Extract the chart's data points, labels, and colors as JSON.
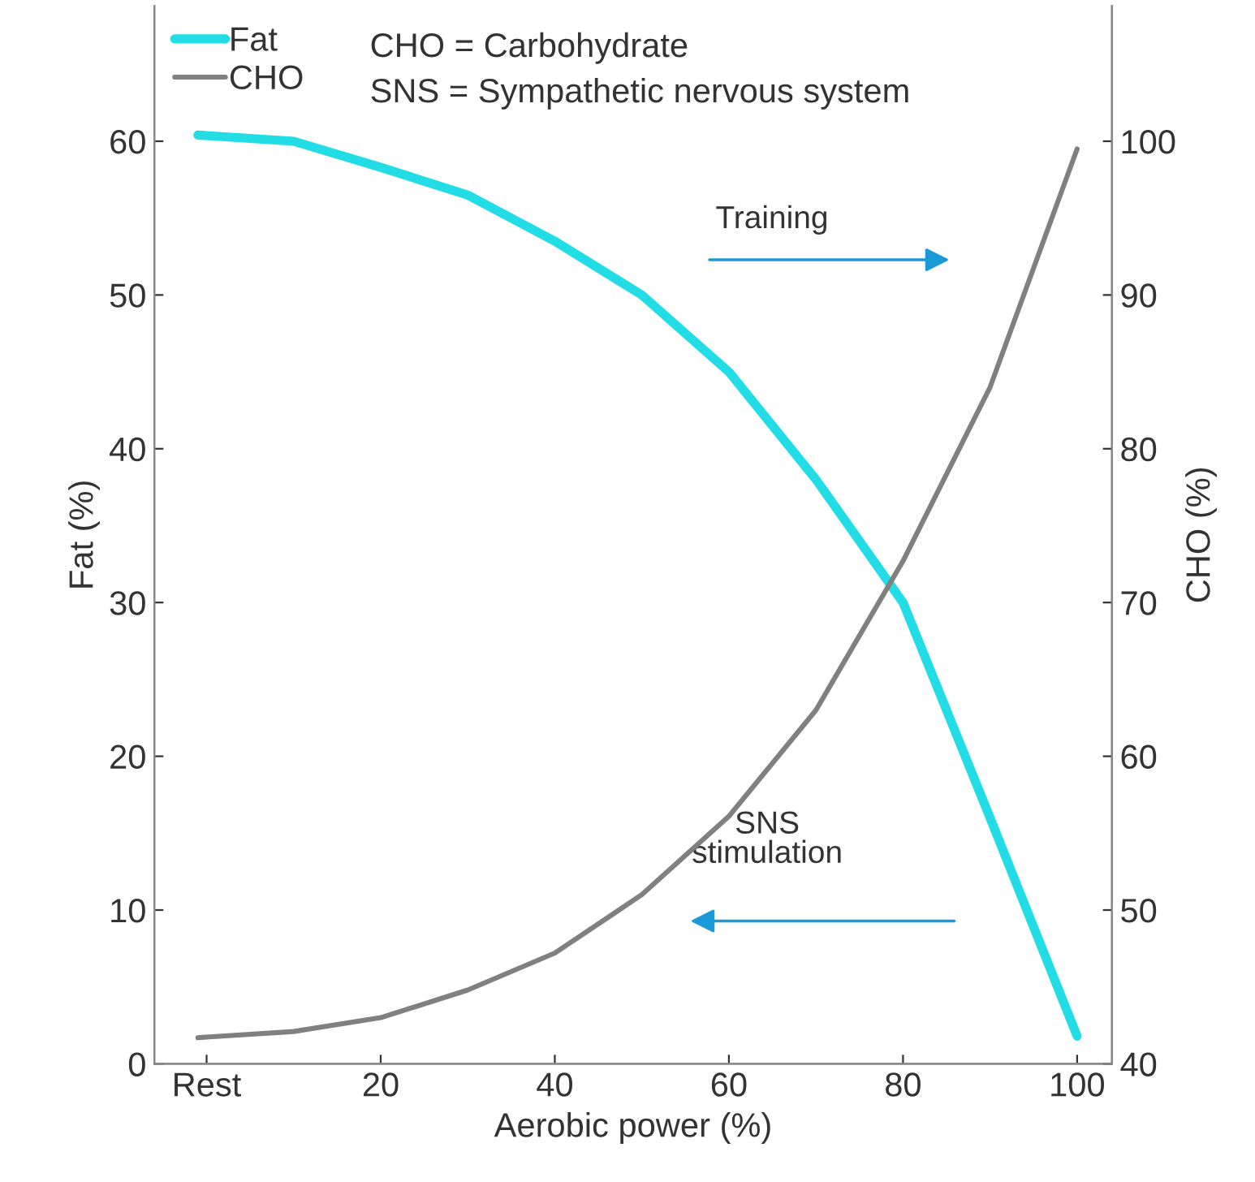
{
  "chart_data": {
    "type": "line",
    "xlabel": "Aerobic power (%)",
    "ylabel": "Fat (%)",
    "y2label": "CHO (%)",
    "xlim": [
      -6,
      104
    ],
    "xticks": [
      {
        "value": 0,
        "label": "Rest"
      },
      20,
      40,
      60,
      80,
      100
    ],
    "ylim": [
      0,
      68.8
    ],
    "yticks": [
      0,
      10,
      20,
      30,
      40,
      50,
      60
    ],
    "y2lim": [
      40,
      108.8
    ],
    "y2ticks": [
      40,
      50,
      60,
      70,
      80,
      90,
      100
    ],
    "series": [
      {
        "name": "Fat",
        "color": "#22dde6",
        "x": [
          -1,
          10,
          20,
          30,
          40,
          50,
          60,
          70,
          80,
          90,
          100
        ],
        "values": [
          60.4,
          60.0,
          58.3,
          56.5,
          53.5,
          50.0,
          45.0,
          38.0,
          30.0,
          16.0,
          1.8
        ]
      },
      {
        "name": "CHO",
        "color": "#808080",
        "axis": "y2",
        "x": [
          -1,
          10,
          20,
          30,
          40,
          50,
          60,
          70,
          80,
          90,
          100
        ],
        "values": [
          41.7,
          42.1,
          43.0,
          44.8,
          47.2,
          51.0,
          56.1,
          63.0,
          72.7,
          84.0,
          99.5
        ]
      }
    ],
    "annotations": [
      "CHO = Carbohydrate",
      "SNS = Sympathetic nervous system",
      "Training",
      "SNS\nstimulation"
    ],
    "legend": "top left",
    "grid": false,
    "marker": "none",
    "line_style": "solid"
  }
}
